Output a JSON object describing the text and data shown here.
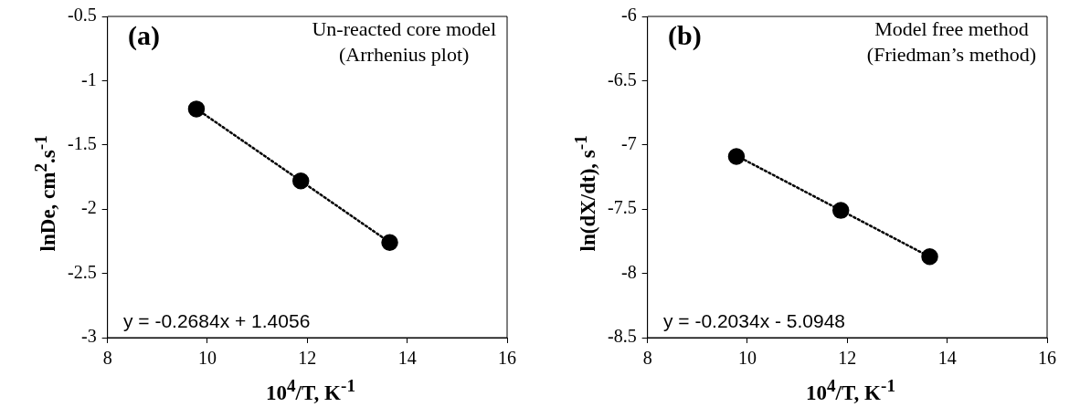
{
  "chart_data": [
    {
      "type": "scatter",
      "title": "(a)",
      "subtitle": "Un-reacted core model\n(Arrhenius plot)",
      "xlabel": "10$^{4}$/T, K$^{-1}$",
      "ylabel": "lnDe, cm$^{2}$.s$^{-1}$",
      "annotations": [
        "y = -0.2684x + 1.4056"
      ],
      "xlim": [
        8,
        16
      ],
      "xticks": [
        8,
        10,
        12,
        14,
        16
      ],
      "ylim": [
        -3,
        -0.5
      ],
      "yticks": [
        -3,
        -2.5,
        -2,
        -1.5,
        -1,
        -0.5
      ],
      "grid": false,
      "legend": false,
      "marker": "circle",
      "series": [
        {
          "type": "scatter",
          "color": "#000000",
          "x": [
            9.78,
            11.87,
            13.65
          ],
          "values": [
            -1.22,
            -1.78,
            -2.26
          ]
        },
        {
          "type": "line",
          "color": "#000000",
          "x": [
            9.78,
            13.65
          ],
          "values": [
            -1.219,
            -2.258
          ],
          "line_style": "dotted",
          "marker": "none"
        }
      ]
    },
    {
      "type": "scatter",
      "title": "(b)",
      "subtitle": "Model free method\n(Friedman’s method)",
      "xlabel": "10$^{4}$/T, K$^{-1}$",
      "ylabel": "ln(dX/dt), s$^{-1}$",
      "annotations": [
        "y = -0.2034x - 5.0948"
      ],
      "xlim": [
        8,
        16
      ],
      "xticks": [
        8,
        10,
        12,
        14,
        16
      ],
      "ylim": [
        -8.5,
        -6
      ],
      "yticks": [
        -8.5,
        -8,
        -7.5,
        -7,
        -6.5,
        -6
      ],
      "grid": false,
      "legend": false,
      "marker": "circle",
      "series": [
        {
          "type": "scatter",
          "color": "#000000",
          "x": [
            9.78,
            11.87,
            13.65
          ],
          "values": [
            -7.09,
            -7.51,
            -7.87
          ]
        },
        {
          "type": "line",
          "color": "#000000",
          "x": [
            9.78,
            13.65
          ],
          "values": [
            -7.084,
            -7.871
          ],
          "line_style": "dotted",
          "marker": "none"
        }
      ]
    }
  ]
}
